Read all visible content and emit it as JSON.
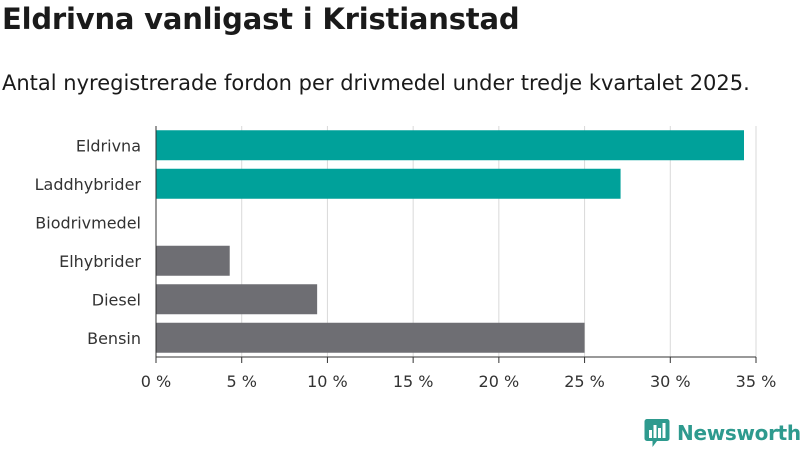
{
  "chart_data": {
    "type": "bar",
    "orientation": "horizontal",
    "title": "Eldrivna vanligast i Kristianstad",
    "subtitle": "Antal nyregistrerade fordon per drivmedel under tredje kvartalet 2025.",
    "categories": [
      "Eldrivna",
      "Laddhybrider",
      "Biodrivmedel",
      "Elhybrider",
      "Diesel",
      "Bensin"
    ],
    "values": [
      34.3,
      27.1,
      0,
      4.3,
      9.4,
      25.0
    ],
    "bar_colors": [
      "#00a19a",
      "#00a19a",
      "#00a19a",
      "#6e6e73",
      "#6e6e73",
      "#6e6e73"
    ],
    "xlim": [
      0,
      35
    ],
    "xticks": [
      0,
      5,
      10,
      15,
      20,
      25,
      30,
      35
    ],
    "xtick_labels": [
      "0 %",
      "5 %",
      "10 %",
      "15 %",
      "20 %",
      "25 %",
      "30 %",
      "35 %"
    ],
    "xlabel": "",
    "ylabel": "",
    "grid": "vertical"
  },
  "colors": {
    "electric": "#00a19a",
    "fossil": "#6e6e73",
    "grid": "#d9d9d9",
    "axis": "#333333",
    "brand": "#2e9a8e"
  },
  "brand": {
    "name": "Newsworthy",
    "logo_icon": "newsworthy-logo-icon"
  }
}
